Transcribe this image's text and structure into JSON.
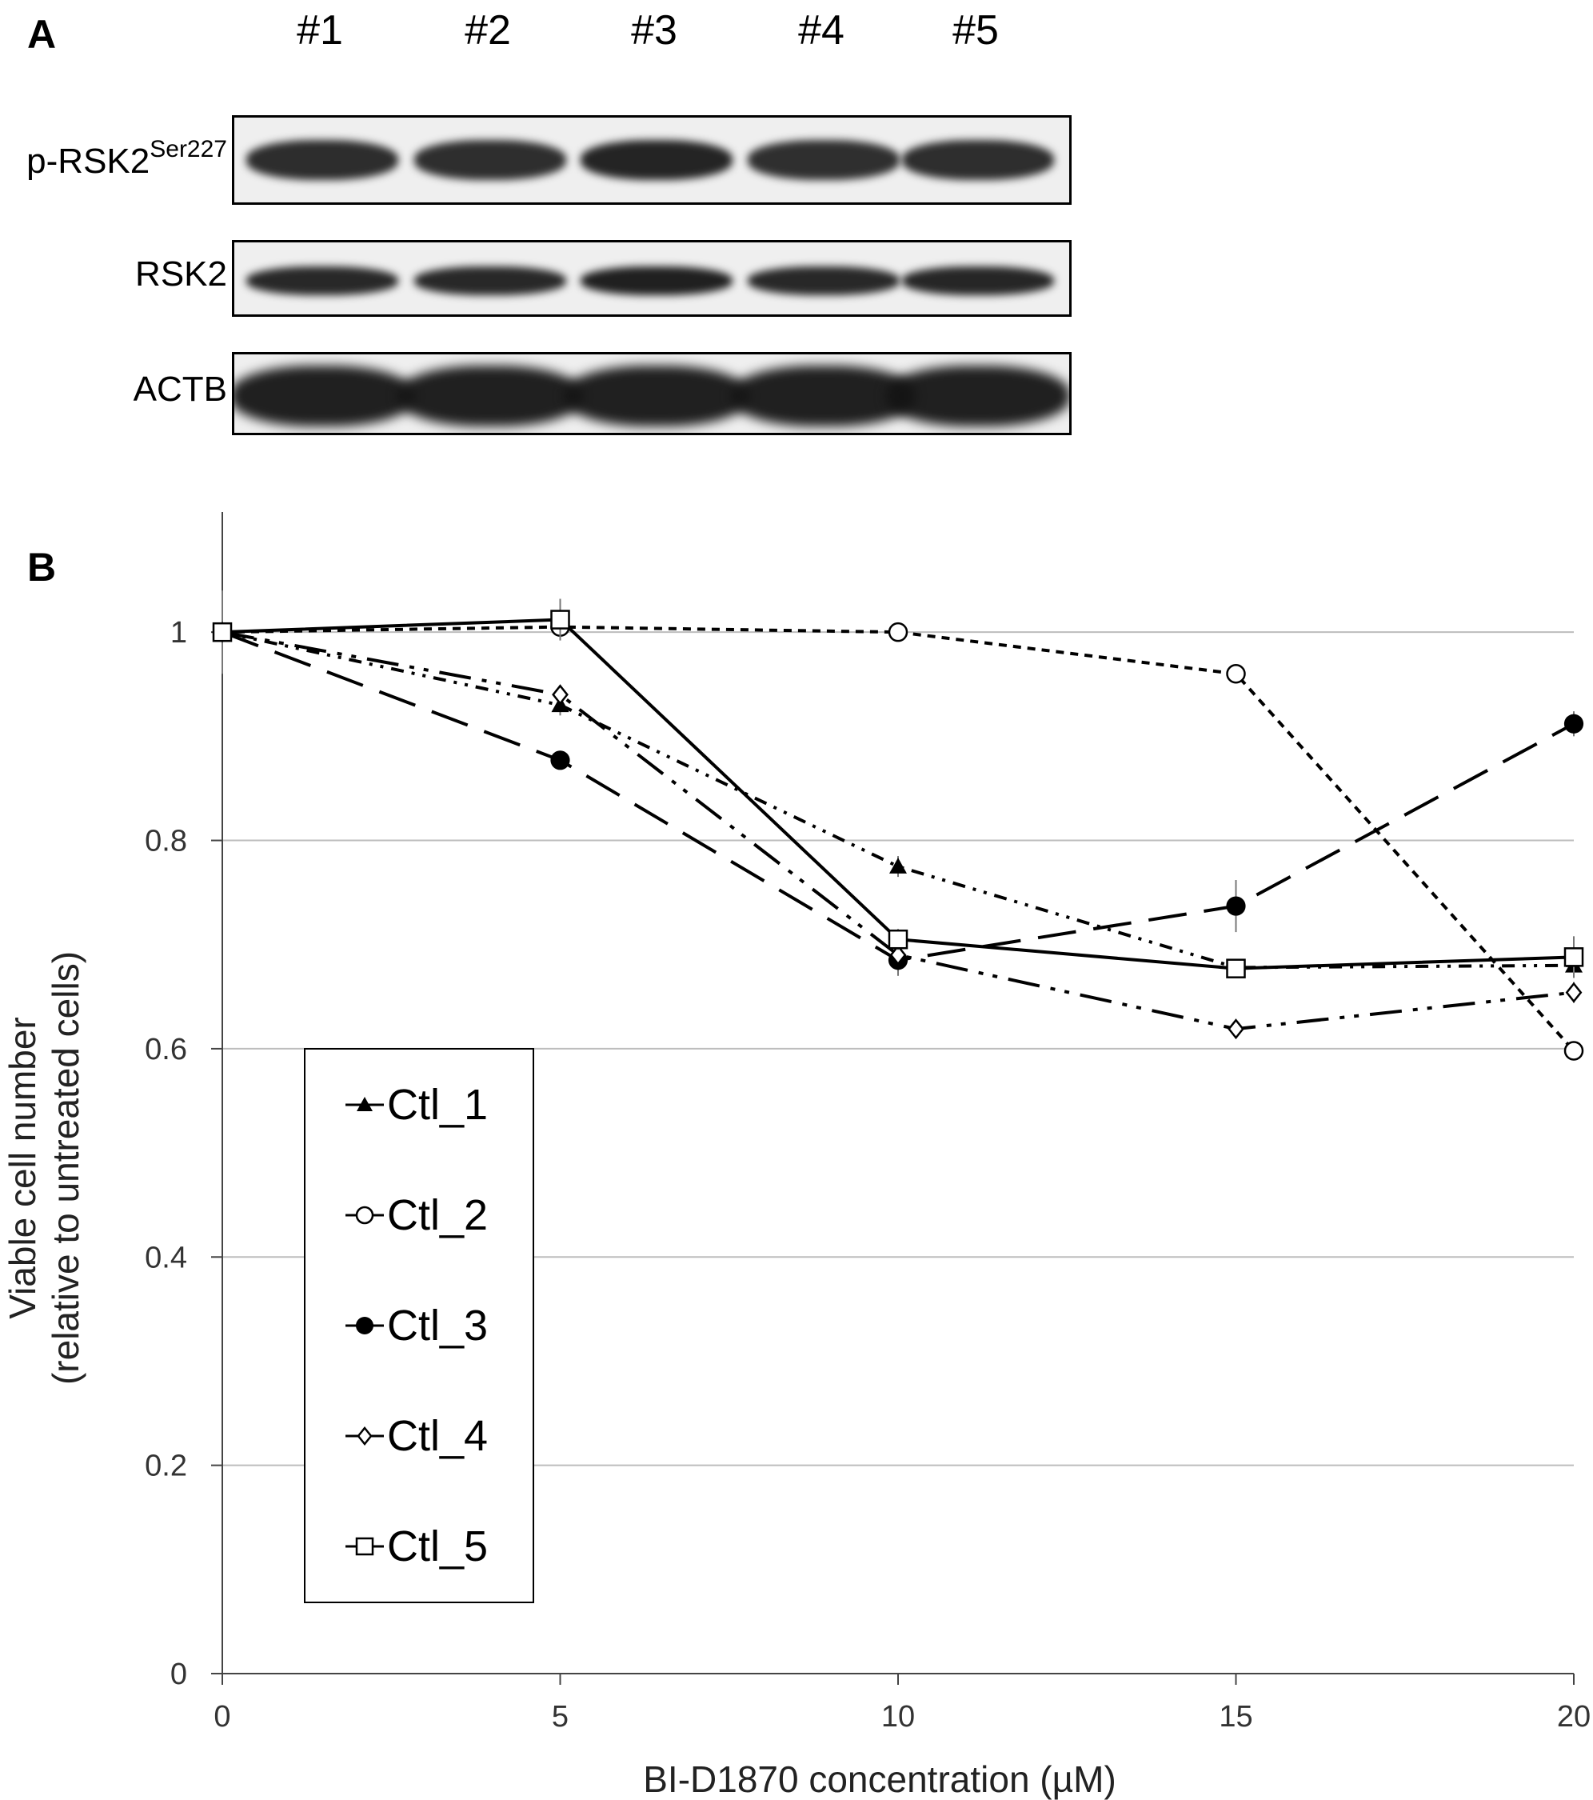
{
  "panel_a": {
    "letter": "A",
    "lanes": [
      "#1",
      "#2",
      "#3",
      "#4",
      "#5"
    ],
    "rows": [
      {
        "label": "p-RSK2",
        "superscript": "Ser227",
        "intensity": [
          0.85,
          0.83,
          0.95,
          0.82,
          0.84
        ]
      },
      {
        "label": "RSK2",
        "superscript": "",
        "intensity": [
          0.9,
          0.9,
          1.0,
          0.9,
          0.92
        ]
      },
      {
        "label": "ACTB",
        "superscript": "",
        "intensity": [
          1.0,
          1.0,
          1.0,
          1.0,
          1.0
        ]
      }
    ]
  },
  "panel_b": {
    "letter": "B"
  },
  "chart_data": {
    "type": "line",
    "xlabel": "BI-D1870 concentration (µM)",
    "ylabel_line1": "Viable cell number",
    "ylabel_line2": "(relative to untreated cells)",
    "x": [
      0,
      5,
      10,
      15,
      20
    ],
    "xlim": [
      0,
      20
    ],
    "ylim": [
      0,
      1.1
    ],
    "xticks": [
      "0",
      "5",
      "10",
      "15",
      "20"
    ],
    "yticks": [
      "0",
      "0.2",
      "0.4",
      "0.6",
      "0.8",
      "1"
    ],
    "grid": true,
    "legend_position": "lower-left",
    "series": [
      {
        "name": "Ctl_1",
        "marker": "triangle-filled",
        "dash": "16 10 4 10 4 10",
        "values": [
          1.0,
          0.93,
          0.775,
          0.678,
          0.68
        ],
        "errors": [
          0.04,
          0.01,
          0.01,
          0.005,
          0.01
        ]
      },
      {
        "name": "Ctl_2",
        "marker": "circle-open",
        "dash": "10 8",
        "values": [
          1.0,
          1.005,
          1.0,
          0.96,
          0.598
        ],
        "errors": [
          0,
          0.01,
          0.005,
          0.005,
          0.005
        ]
      },
      {
        "name": "Ctl_3",
        "marker": "circle-filled",
        "dash": "48 22",
        "values": [
          1.0,
          0.877,
          0.685,
          0.737,
          0.912
        ],
        "errors": [
          0,
          0.005,
          0.015,
          0.025,
          0.012
        ]
      },
      {
        "name": "Ctl_4",
        "marker": "diamond-open",
        "dash": "40 14 6 12 6 14",
        "values": [
          1.0,
          0.94,
          0.69,
          0.619,
          0.654
        ],
        "errors": [
          0,
          0.005,
          0.005,
          0.005,
          0.01
        ]
      },
      {
        "name": "Ctl_5",
        "marker": "square-open",
        "dash": "",
        "values": [
          1.0,
          1.012,
          0.705,
          0.677,
          0.688
        ],
        "errors": [
          0,
          0.02,
          0.01,
          0.005,
          0.02
        ]
      }
    ]
  }
}
